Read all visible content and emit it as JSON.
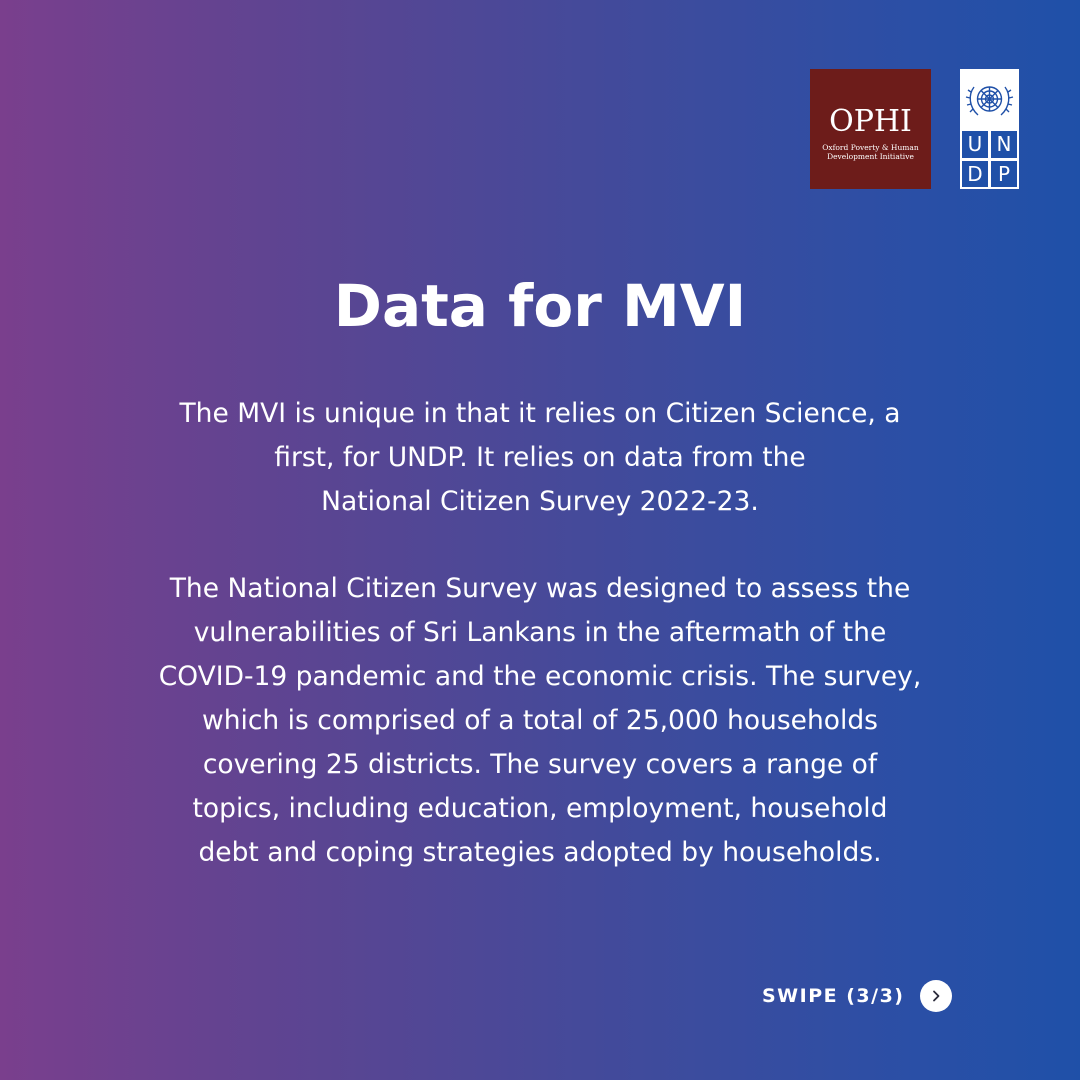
{
  "logos": {
    "ophi": {
      "name": "OPHI",
      "subtitle": "Oxford Poverty & Human Development Initiative",
      "color": "#6d1c1a"
    },
    "undp": {
      "letters": [
        "U",
        "N",
        "D",
        "P"
      ],
      "color": "#1f50a8"
    }
  },
  "title": "Data for MVI",
  "paragraphs": [
    {
      "lines": [
        "The MVI is unique in that it relies on Citizen Science, a",
        "first, for UNDP. It relies on data from the",
        "National Citizen Survey 2022-23."
      ]
    },
    {
      "lines": [
        "The National Citizen Survey was designed to assess the",
        "vulnerabilities of Sri Lankans in the aftermath of the",
        "COVID-19 pandemic and the economic crisis. The survey,",
        "which is comprised of a total of 25,000 households",
        "covering 25 districts. The survey covers a range of",
        "topics, including education, employment, household",
        "debt and coping strategies adopted by households."
      ]
    }
  ],
  "swipe": {
    "label": "SWIPE (3/3)",
    "icon": "chevron-right-icon"
  },
  "colors": {
    "gradient_start": "#7a3f8d",
    "gradient_end": "#1f50a8",
    "text": "#ffffff"
  }
}
